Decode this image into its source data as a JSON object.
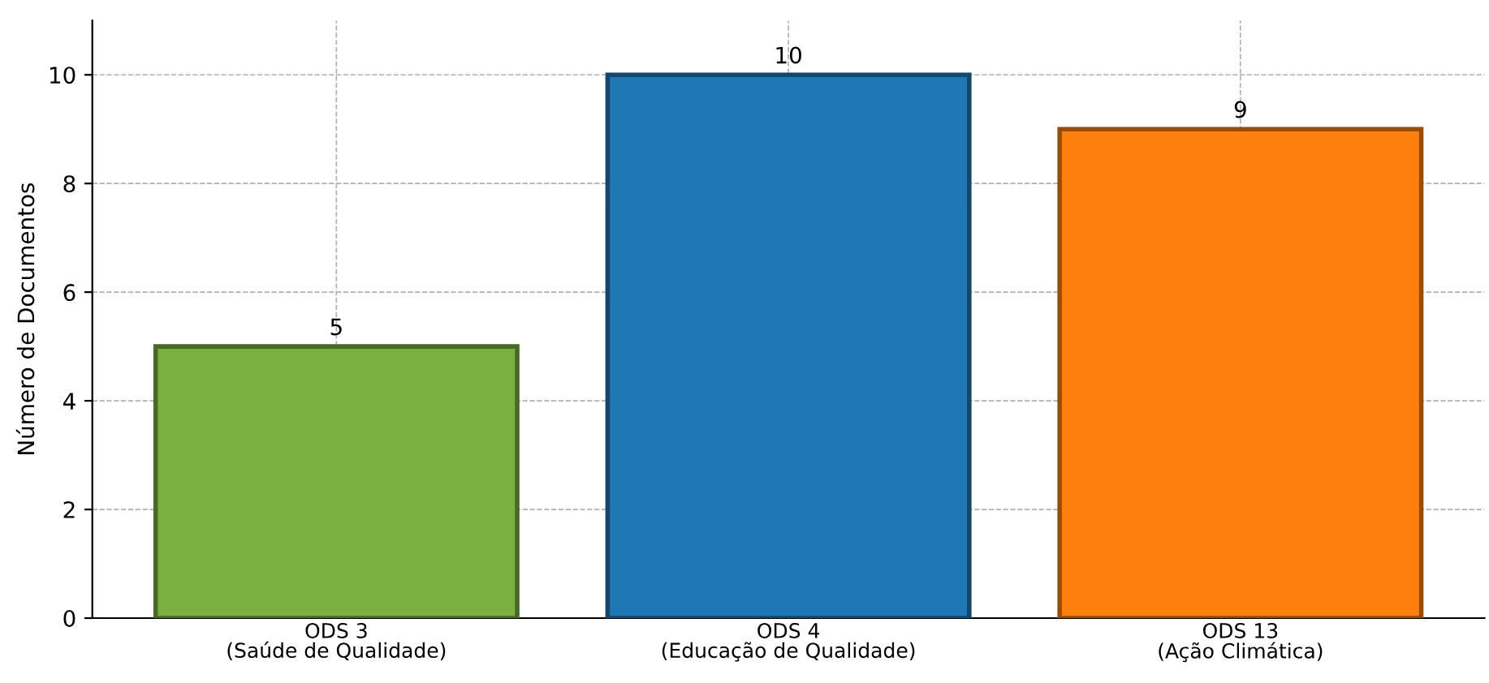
{
  "chart_data": {
    "type": "bar",
    "ylabel": "Número de Documentos",
    "categories": [
      "ODS 3\n(Saúde de Qualidade)",
      "ODS 4\n(Educação de Qualidade)",
      "ODS 13\n(Ação Climática)"
    ],
    "values": [
      5,
      10,
      9
    ],
    "colors": [
      "#7ab03f",
      "#1f77b4",
      "#ff7f0e"
    ],
    "ylim": [
      0,
      11
    ],
    "yticks": [
      0,
      2,
      4,
      6,
      8,
      10
    ],
    "grid": true,
    "data_labels": true
  }
}
